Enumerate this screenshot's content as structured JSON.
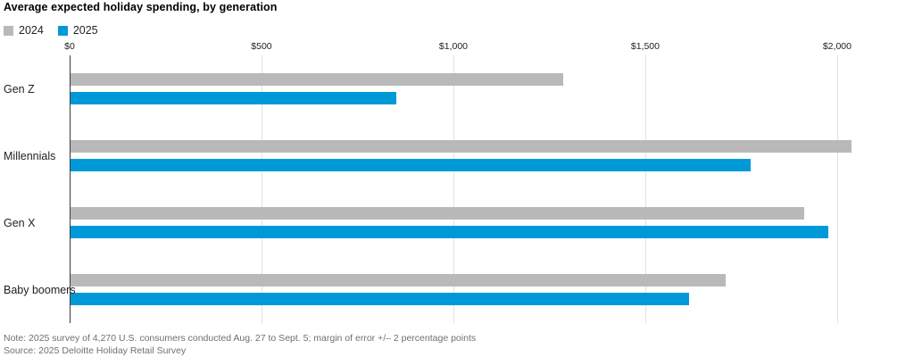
{
  "title": "Average expected holiday spending, by generation",
  "note": "Note: 2025 survey of 4,270 U.S. consumers conducted Aug. 27 to Sept. 5; margin of error +/– 2 percentage points",
  "source": "Source: 2025 Deloitte Holiday Retail Survey",
  "colors": {
    "series_2024": "#b9b9b9",
    "series_2025": "#0099d8",
    "gridline": "#e2e2e2",
    "axis_line": "#3a3a3a",
    "note_text": "#6f6f6f"
  },
  "chart_data": {
    "type": "bar",
    "orientation": "horizontal",
    "title": "Average expected holiday spending, by generation",
    "categories": [
      "Gen Z",
      "Millennials",
      "Gen X",
      "Baby boomers"
    ],
    "series": [
      {
        "name": "2024",
        "color": "#b9b9b9",
        "values": [
          1284,
          2035,
          1911,
          1708
        ]
      },
      {
        "name": "2025",
        "color": "#0099d8",
        "values": [
          849,
          1773,
          1975,
          1611
        ]
      }
    ],
    "xlabel": "",
    "ylabel": "",
    "x_axis": {
      "ticks": [
        0,
        500,
        1000,
        1500,
        2000
      ],
      "tick_labels": [
        "$0",
        "$500",
        "$1,000",
        "$1,500",
        "$2,000"
      ],
      "min": 0,
      "max": 2170,
      "position": "top"
    },
    "grid": true,
    "legend_position": "top-left"
  }
}
